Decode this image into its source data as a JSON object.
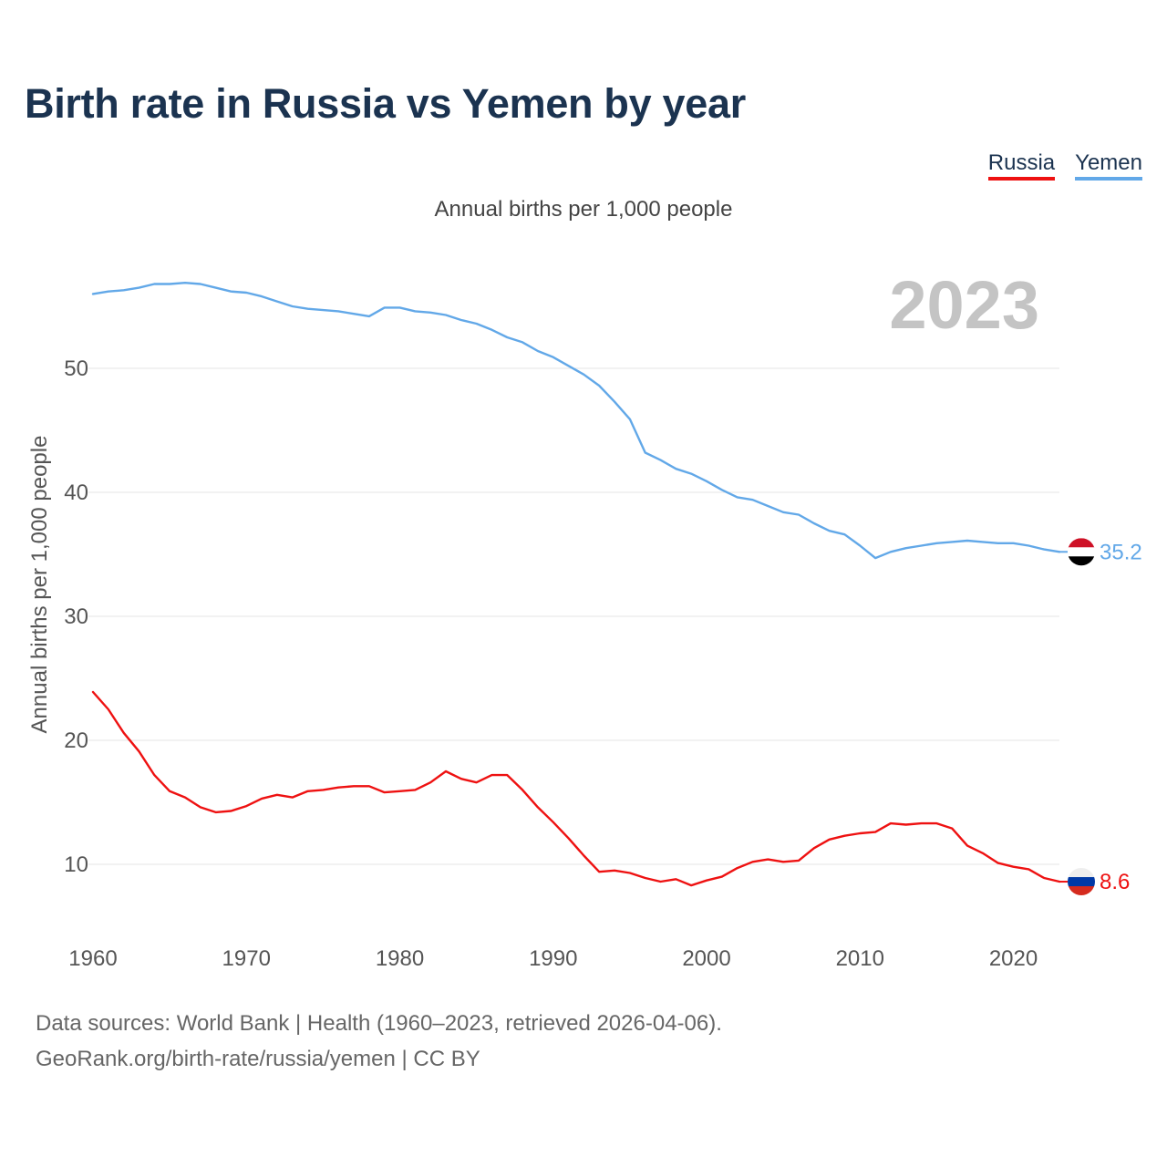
{
  "title": "Birth rate in Russia vs Yemen by year",
  "subtitle": "Annual births per 1,000 people",
  "legend": [
    {
      "name": "Russia",
      "color": "#ee1111"
    },
    {
      "name": "Yemen",
      "color": "#62a8e8"
    }
  ],
  "footer": {
    "line1": "Data sources: World Bank | Health (1960–2023, retrieved 2026-04-06).",
    "line2": "GeoRank.org/birth-rate/russia/yemen | CC BY"
  },
  "chart_data": {
    "type": "line",
    "title": "Birth rate in Russia vs Yemen by year",
    "subtitle": "Annual births per 1,000 people",
    "xlabel": "",
    "ylabel": "Annual births per 1,000 people",
    "year_label": "2023",
    "xlim": [
      1960,
      2023
    ],
    "ylim": [
      5,
      58
    ],
    "xticks": [
      1960,
      1970,
      1980,
      1990,
      2000,
      2010,
      2020
    ],
    "yticks": [
      10,
      20,
      30,
      40,
      50
    ],
    "grid": true,
    "legend_position": "top-right",
    "x": [
      1960,
      1961,
      1962,
      1963,
      1964,
      1965,
      1966,
      1967,
      1968,
      1969,
      1970,
      1971,
      1972,
      1973,
      1974,
      1975,
      1976,
      1977,
      1978,
      1979,
      1980,
      1981,
      1982,
      1983,
      1984,
      1985,
      1986,
      1987,
      1988,
      1989,
      1990,
      1991,
      1992,
      1993,
      1994,
      1995,
      1996,
      1997,
      1998,
      1999,
      2000,
      2001,
      2002,
      2003,
      2004,
      2005,
      2006,
      2007,
      2008,
      2009,
      2010,
      2011,
      2012,
      2013,
      2014,
      2015,
      2016,
      2017,
      2018,
      2019,
      2020,
      2021,
      2022,
      2023
    ],
    "series": [
      {
        "name": "Russia",
        "color": "#ee1111",
        "end_label": "8.6",
        "values": [
          23.9,
          22.5,
          20.6,
          19.1,
          17.2,
          15.9,
          15.4,
          14.6,
          14.2,
          14.3,
          14.7,
          15.3,
          15.6,
          15.4,
          15.9,
          16.0,
          16.2,
          16.3,
          16.3,
          15.8,
          15.9,
          16.0,
          16.6,
          17.5,
          16.9,
          16.6,
          17.2,
          17.2,
          16.0,
          14.6,
          13.4,
          12.1,
          10.7,
          9.4,
          9.5,
          9.3,
          8.9,
          8.6,
          8.8,
          8.3,
          8.7,
          9.0,
          9.7,
          10.2,
          10.4,
          10.2,
          10.3,
          11.3,
          12.0,
          12.3,
          12.5,
          12.6,
          13.3,
          13.2,
          13.3,
          13.3,
          12.9,
          11.5,
          10.9,
          10.1,
          9.8,
          9.6,
          8.9,
          8.6
        ]
      },
      {
        "name": "Yemen",
        "color": "#62a8e8",
        "end_label": "35.2",
        "values": [
          56.0,
          56.2,
          56.3,
          56.5,
          56.8,
          56.8,
          56.9,
          56.8,
          56.5,
          56.2,
          56.1,
          55.8,
          55.4,
          55.0,
          54.8,
          54.7,
          54.6,
          54.4,
          54.2,
          54.9,
          54.9,
          54.6,
          54.5,
          54.3,
          53.9,
          53.6,
          53.1,
          52.5,
          52.1,
          51.4,
          50.9,
          50.2,
          49.5,
          48.6,
          47.3,
          45.9,
          43.2,
          42.6,
          41.9,
          41.5,
          40.9,
          40.2,
          39.6,
          39.4,
          38.9,
          38.4,
          38.2,
          37.5,
          36.9,
          36.6,
          35.7,
          34.7,
          35.2,
          35.5,
          35.7,
          35.9,
          36.0,
          36.1,
          36.0,
          35.9,
          35.9,
          35.7,
          35.4,
          35.2
        ]
      }
    ]
  }
}
